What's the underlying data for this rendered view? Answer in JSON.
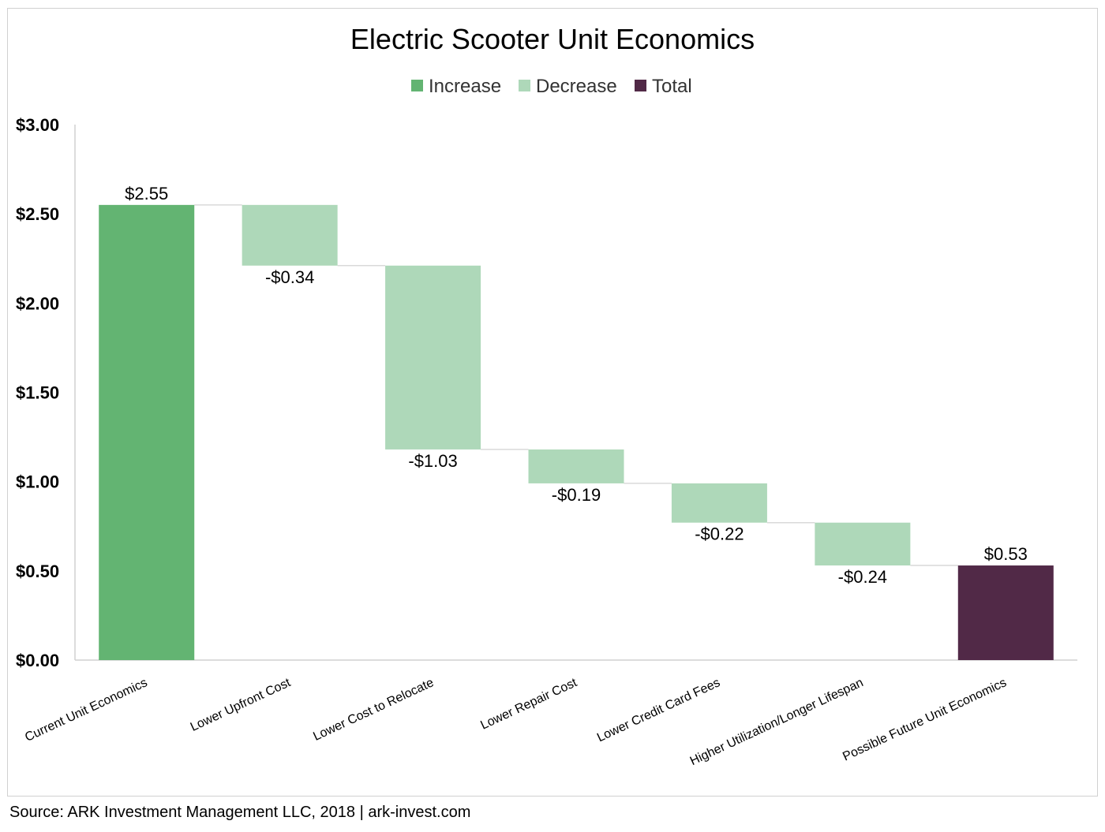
{
  "chart_data": {
    "type": "waterfall",
    "title": "Electric Scooter Unit Economics",
    "legend": {
      "position": "top-center",
      "items": [
        {
          "label": "Increase",
          "color": "#63b472"
        },
        {
          "label": "Decrease",
          "color": "#aed8b9"
        },
        {
          "label": "Total",
          "color": "#512947"
        }
      ]
    },
    "categories": [
      "Current Unit Economics",
      "Lower Upfront Cost",
      "Lower Cost to Relocate",
      "Lower Repair Cost",
      "Lower Credit Card Fees",
      "Higher Utilization/Longer Lifespan",
      "Possible Future Unit Economics"
    ],
    "values": [
      2.55,
      -0.34,
      -1.03,
      -0.19,
      -0.22,
      -0.24,
      0.53
    ],
    "kinds": [
      "increase",
      "decrease",
      "decrease",
      "decrease",
      "decrease",
      "decrease",
      "total"
    ],
    "data_labels": [
      "$2.55",
      "-$0.34",
      "-$1.03",
      "-$0.19",
      "-$0.22",
      "-$0.24",
      "$0.53"
    ],
    "y_ticks": [
      0,
      0.5,
      1,
      1.5,
      2,
      2.5,
      3
    ],
    "y_tick_labels": [
      "$0.00",
      "$0.50",
      "$1.00",
      "$1.50",
      "$2.00",
      "$2.50",
      "$3.00"
    ],
    "ylim": [
      0,
      3
    ],
    "grid": false,
    "connectors": true
  },
  "source": "Source: ARK Investment Management LLC, 2018 | ark-invest.com"
}
